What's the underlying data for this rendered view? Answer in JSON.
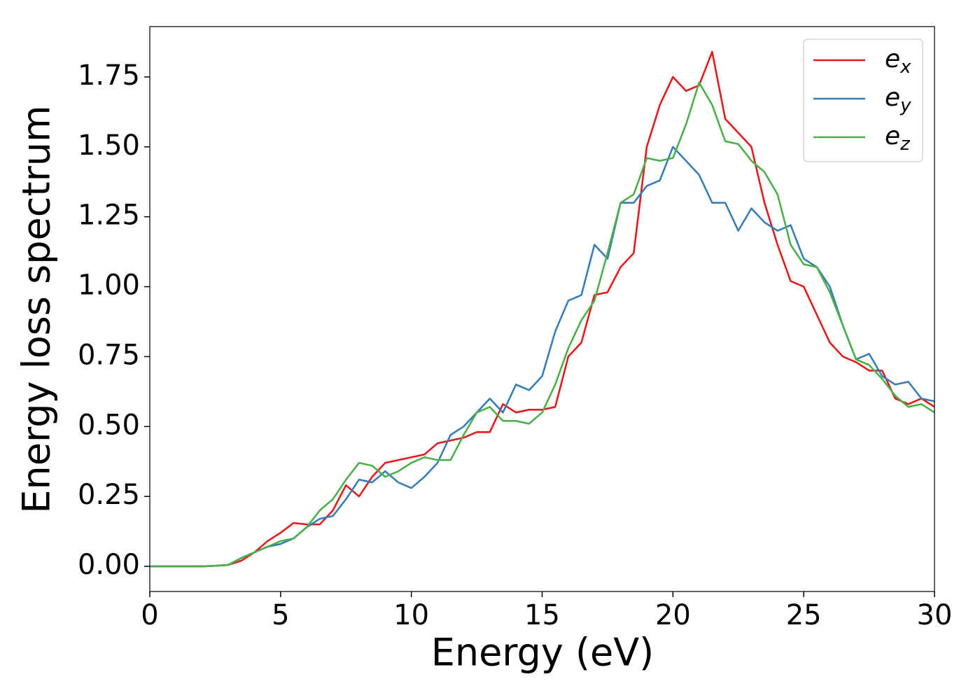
{
  "chart_data": {
    "type": "line",
    "xlabel": "Energy (eV)",
    "ylabel": "Energy loss spectrum",
    "x": [
      0,
      0.5,
      1,
      1.5,
      2,
      2.5,
      3,
      3.5,
      4,
      4.5,
      5,
      5.5,
      6,
      6.5,
      7,
      7.5,
      8,
      8.5,
      9,
      9.5,
      10,
      10.5,
      11,
      11.5,
      12,
      12.5,
      13,
      13.5,
      14,
      14.5,
      15,
      15.5,
      16,
      16.5,
      17,
      17.5,
      18,
      18.5,
      19,
      19.5,
      20,
      20.5,
      21,
      21.5,
      22,
      22.5,
      23,
      23.5,
      24,
      24.5,
      25,
      25.5,
      26,
      26.5,
      27,
      27.5,
      28,
      28.5,
      29,
      29.5,
      30
    ],
    "series": [
      {
        "name": "ex",
        "color": "#e41a1c",
        "values": [
          0,
          0,
          0,
          0,
          0,
          0.002,
          0.005,
          0.02,
          0.05,
          0.09,
          0.12,
          0.155,
          0.15,
          0.15,
          0.2,
          0.29,
          0.25,
          0.32,
          0.37,
          0.38,
          0.39,
          0.4,
          0.44,
          0.45,
          0.46,
          0.48,
          0.48,
          0.58,
          0.55,
          0.56,
          0.56,
          0.57,
          0.75,
          0.8,
          0.97,
          0.98,
          1.07,
          1.12,
          1.5,
          1.65,
          1.75,
          1.7,
          1.72,
          1.84,
          1.6,
          1.55,
          1.5,
          1.3,
          1.15,
          1.02,
          1.0,
          0.9,
          0.8,
          0.75,
          0.73,
          0.7,
          0.7,
          0.6,
          0.58,
          0.6,
          0.57
        ]
      },
      {
        "name": "ey",
        "color": "#377eb8",
        "values": [
          0,
          0,
          0,
          0,
          0,
          0.002,
          0.005,
          0.03,
          0.05,
          0.07,
          0.08,
          0.1,
          0.14,
          0.17,
          0.18,
          0.24,
          0.31,
          0.3,
          0.34,
          0.3,
          0.28,
          0.32,
          0.37,
          0.47,
          0.5,
          0.55,
          0.6,
          0.55,
          0.65,
          0.63,
          0.68,
          0.84,
          0.95,
          0.97,
          1.15,
          1.1,
          1.3,
          1.3,
          1.36,
          1.38,
          1.5,
          1.45,
          1.4,
          1.3,
          1.3,
          1.2,
          1.28,
          1.23,
          1.2,
          1.22,
          1.1,
          1.07,
          1.0,
          0.86,
          0.74,
          0.76,
          0.68,
          0.65,
          0.66,
          0.6,
          0.59
        ]
      },
      {
        "name": "ez",
        "color": "#4daf4a",
        "values": [
          0,
          0,
          0,
          0,
          0,
          0.002,
          0.005,
          0.03,
          0.05,
          0.07,
          0.09,
          0.1,
          0.14,
          0.2,
          0.24,
          0.31,
          0.37,
          0.36,
          0.32,
          0.34,
          0.37,
          0.39,
          0.38,
          0.38,
          0.47,
          0.55,
          0.57,
          0.52,
          0.52,
          0.51,
          0.55,
          0.65,
          0.78,
          0.88,
          0.95,
          1.12,
          1.3,
          1.33,
          1.46,
          1.45,
          1.46,
          1.58,
          1.73,
          1.65,
          1.52,
          1.51,
          1.45,
          1.41,
          1.33,
          1.15,
          1.08,
          1.07,
          0.98,
          0.86,
          0.74,
          0.72,
          0.67,
          0.61,
          0.57,
          0.58,
          0.55
        ]
      }
    ],
    "xlim": [
      0,
      30
    ],
    "xticks": [
      0,
      5,
      10,
      15,
      20,
      25,
      30
    ],
    "ylim": [
      -0.09,
      1.93
    ],
    "yticks": [
      {
        "value": 0,
        "label": "0.00"
      },
      {
        "value": 0.25,
        "label": "0.25"
      },
      {
        "value": 0.5,
        "label": "0.50"
      },
      {
        "value": 0.75,
        "label": "0.75"
      },
      {
        "value": 1,
        "label": "1.00"
      },
      {
        "value": 1.25,
        "label": "1.25"
      },
      {
        "value": 1.5,
        "label": "1.50"
      },
      {
        "value": 1.75,
        "label": "1.75"
      }
    ],
    "grid": false,
    "legend": "upper right"
  }
}
